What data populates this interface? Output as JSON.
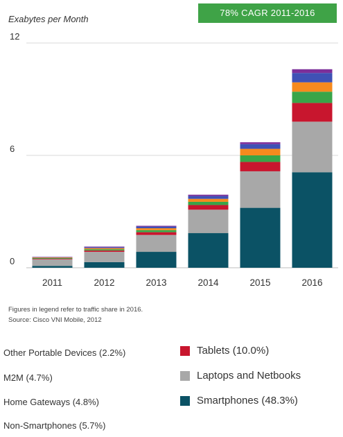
{
  "chart_data": {
    "type": "bar",
    "stacked": true,
    "ylabel": "Exabytes per Month",
    "ylim": [
      0,
      12
    ],
    "yticks": [
      "0",
      "6",
      "12"
    ],
    "categories": [
      "2011",
      "2012",
      "2013",
      "2014",
      "2015",
      "2016"
    ],
    "series": [
      {
        "name": "Smartphones (48.3%)",
        "color": "#0b5265",
        "values": [
          0.1,
          0.3,
          0.85,
          1.85,
          3.2,
          5.1
        ]
      },
      {
        "name": "Laptops and Netbooks",
        "color": "#a8a8a8",
        "values": [
          0.35,
          0.55,
          0.9,
          1.25,
          1.95,
          2.7
        ]
      },
      {
        "name": "Tablets (10.0%)",
        "color": "#c8162e",
        "values": [
          0.03,
          0.07,
          0.15,
          0.25,
          0.5,
          1.0
        ]
      },
      {
        "name": "Non-Smartphones (5.7%)",
        "color": "#39a548",
        "values": [
          0.04,
          0.07,
          0.11,
          0.17,
          0.35,
          0.6
        ]
      },
      {
        "name": "Home Gateways (4.8%)",
        "color": "#f68a1e",
        "values": [
          0.03,
          0.06,
          0.1,
          0.16,
          0.35,
          0.5
        ]
      },
      {
        "name": "M2M (4.7%)",
        "color": "#3f51b5",
        "values": [
          0.02,
          0.05,
          0.09,
          0.15,
          0.25,
          0.5
        ]
      },
      {
        "name": "Other Portable Devices (2.2%)",
        "color": "#7c2f9a",
        "values": [
          0.01,
          0.03,
          0.04,
          0.07,
          0.1,
          0.2
        ]
      }
    ]
  },
  "header": {
    "ylabel": "Exabytes per Month",
    "badge": "78% CAGR 2011-2016",
    "badge_color": "#3fa347"
  },
  "notes": {
    "line1": "Figures in legend refer to traffic share in 2016.",
    "line2": "Source: Cisco VNI Mobile, 2012"
  },
  "legend": {
    "left": [
      "Other Portable Devices (2.2%)",
      "M2M (4.7%)",
      "Home Gateways (4.8%)",
      "Non-Smartphones (5.7%)"
    ],
    "right": [
      {
        "label": "Tablets (10.0%)",
        "color": "#c8162e"
      },
      {
        "label": "Laptops and Netbooks",
        "color": "#a8a8a8"
      },
      {
        "label": "Smartphones (48.3%)",
        "color": "#0b5265"
      }
    ]
  }
}
